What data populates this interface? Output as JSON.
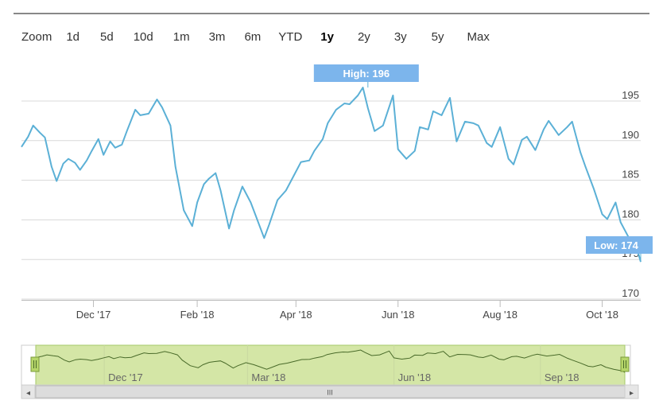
{
  "zoom": {
    "label": "Zoom",
    "buttons": [
      {
        "label": "1d",
        "active": false
      },
      {
        "label": "5d",
        "active": false
      },
      {
        "label": "10d",
        "active": false
      },
      {
        "label": "1m",
        "active": false
      },
      {
        "label": "3m",
        "active": false
      },
      {
        "label": "6m",
        "active": false
      },
      {
        "label": "YTD",
        "active": false
      },
      {
        "label": "1y",
        "active": true
      },
      {
        "label": "2y",
        "active": false
      },
      {
        "label": "3y",
        "active": false
      },
      {
        "label": "5y",
        "active": false
      },
      {
        "label": "Max",
        "active": false
      }
    ]
  },
  "colors": {
    "line": "#5bb0d6",
    "flag_high": "#7cb5ec",
    "flag_low": "#7cb5ec",
    "navigator_fill": "#d4e6a6",
    "navigator_border": "#a6c96a",
    "navigator_line": "#4a6b2a",
    "grid": "#d8d8d8"
  },
  "navigator": {
    "ticks": [
      "Dec '17",
      "Mar '18",
      "Jun '18",
      "Sep '18"
    ],
    "scrollbar_left": "◂",
    "scrollbar_right": "▸",
    "scrollbar_grip": "III"
  },
  "chart_data": {
    "type": "line",
    "x_ticks": [
      "Dec '17",
      "Feb '18",
      "Apr '18",
      "Jun '18",
      "Aug '18",
      "Oct '18"
    ],
    "y_ticks": [
      "195",
      "190",
      "185",
      "180",
      "175",
      "170"
    ],
    "ylim": [
      170,
      197
    ],
    "xlim": [
      "2017-10-19",
      "2018-10-24"
    ],
    "grid": "horizontal",
    "annotations": [
      {
        "label": "High: 196",
        "date": "2018-05-14",
        "value": 196
      },
      {
        "label": "Low: 174",
        "date": "2018-10-24",
        "value": 174
      }
    ],
    "series": [
      {
        "x": [
          "2017-10-19",
          "2017-10-23",
          "2017-10-26",
          "2017-10-30",
          "2017-11-02",
          "2017-11-06",
          "2017-11-09",
          "2017-11-13",
          "2017-11-16",
          "2017-11-20",
          "2017-11-23",
          "2017-11-27",
          "2017-11-30",
          "2017-12-04",
          "2017-12-07",
          "2017-12-11",
          "2017-12-14",
          "2017-12-18",
          "2017-12-21",
          "2017-12-26",
          "2017-12-29",
          "2018-01-03",
          "2018-01-08",
          "2018-01-11",
          "2018-01-16",
          "2018-01-19",
          "2018-01-24",
          "2018-01-29",
          "2018-02-01",
          "2018-02-05",
          "2018-02-08",
          "2018-02-12",
          "2018-02-15",
          "2018-02-20",
          "2018-02-23",
          "2018-02-28",
          "2018-03-05",
          "2018-03-08",
          "2018-03-13",
          "2018-03-16",
          "2018-03-21",
          "2018-03-26",
          "2018-03-29",
          "2018-04-04",
          "2018-04-09",
          "2018-04-12",
          "2018-04-17",
          "2018-04-20",
          "2018-04-25",
          "2018-04-30",
          "2018-05-03",
          "2018-05-08",
          "2018-05-11",
          "2018-05-14",
          "2018-05-18",
          "2018-05-23",
          "2018-05-29",
          "2018-06-01",
          "2018-06-06",
          "2018-06-11",
          "2018-06-14",
          "2018-06-19",
          "2018-06-22",
          "2018-06-27",
          "2018-07-02",
          "2018-07-06",
          "2018-07-11",
          "2018-07-16",
          "2018-07-19",
          "2018-07-24",
          "2018-07-27",
          "2018-08-01",
          "2018-08-06",
          "2018-08-09",
          "2018-08-14",
          "2018-08-17",
          "2018-08-22",
          "2018-08-27",
          "2018-08-30",
          "2018-09-05",
          "2018-09-10",
          "2018-09-13",
          "2018-09-18",
          "2018-09-21",
          "2018-09-26",
          "2018-10-01",
          "2018-10-04",
          "2018-10-09",
          "2018-10-12",
          "2018-10-17",
          "2018-10-22",
          "2018-10-24"
        ],
        "values": [
          188.5,
          189.8,
          191.2,
          190.3,
          189.7,
          186.0,
          184.2,
          186.4,
          187.0,
          186.5,
          185.6,
          186.8,
          188.0,
          189.5,
          187.5,
          189.2,
          188.4,
          188.8,
          190.5,
          193.2,
          192.5,
          192.7,
          194.5,
          193.5,
          191.2,
          186.0,
          180.5,
          178.5,
          181.5,
          183.8,
          184.5,
          185.2,
          183.0,
          178.2,
          180.5,
          183.5,
          181.5,
          179.8,
          177.0,
          178.7,
          181.8,
          183.0,
          184.2,
          186.6,
          186.8,
          188.0,
          189.5,
          191.5,
          193.2,
          194.0,
          193.9,
          195.0,
          196.0,
          193.4,
          190.5,
          191.2,
          195.0,
          188.2,
          187.0,
          188.0,
          191.0,
          190.7,
          193.0,
          192.5,
          194.7,
          189.2,
          191.7,
          191.5,
          191.2,
          189.0,
          188.5,
          191.0,
          187.0,
          186.3,
          189.4,
          189.8,
          188.1,
          190.7,
          191.8,
          190.0,
          191.0,
          191.7,
          187.8,
          186.0,
          183.2,
          180.0,
          179.4,
          181.5,
          179.0,
          177.0,
          175.5,
          174.0
        ]
      }
    ]
  }
}
